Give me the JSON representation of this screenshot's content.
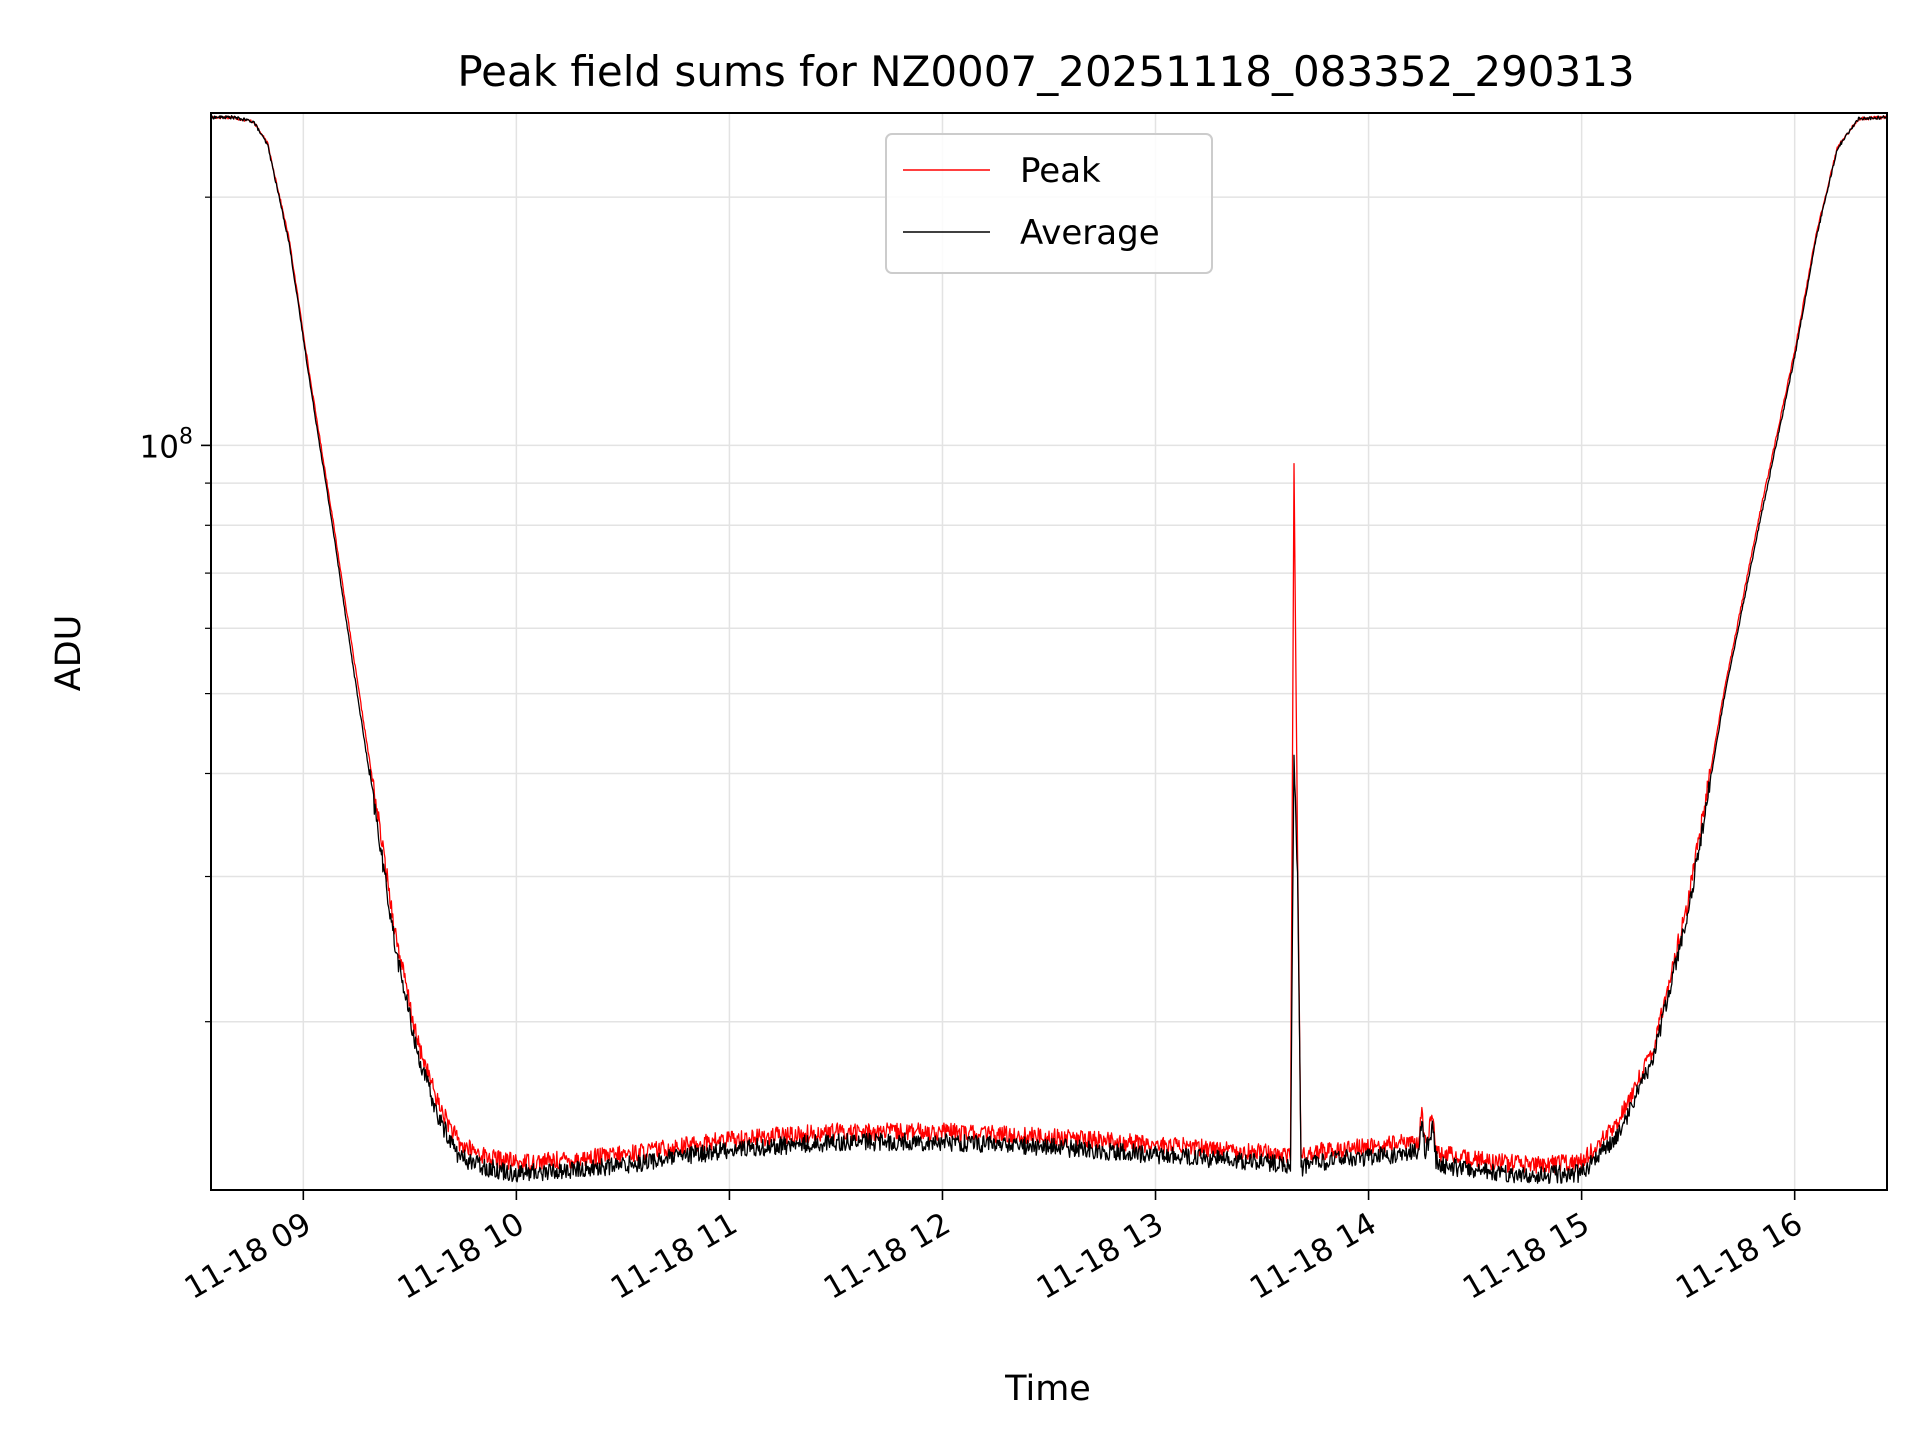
{
  "chart_data": {
    "type": "line",
    "title": "Peak field sums for NZ0007_20251118_083352_290313",
    "xlabel": "Time",
    "ylabel": "ADU",
    "y_scale": "log",
    "xlim": [
      "2025-11-18 08:34",
      "2025-11-18 16:26"
    ],
    "ylim": [
      12500000,
      253000000
    ],
    "x_ticks": [
      "11-18 09",
      "11-18 10",
      "11-18 11",
      "11-18 12",
      "11-18 13",
      "11-18 14",
      "11-18 15",
      "11-18 16"
    ],
    "x_tick_times": [
      "2025-11-18 09:00",
      "2025-11-18 10:00",
      "2025-11-18 11:00",
      "2025-11-18 12:00",
      "2025-11-18 13:00",
      "2025-11-18 14:00",
      "2025-11-18 15:00",
      "2025-11-18 16:00"
    ],
    "y_major_ticks": [
      {
        "value": 100000000,
        "label": "10",
        "exponent": "8"
      }
    ],
    "y_minor_ticks": [
      20000000,
      30000000,
      40000000,
      50000000,
      60000000,
      70000000,
      80000000,
      90000000,
      200000000
    ],
    "grid": true,
    "legend": {
      "placement": "upper-center",
      "entries": [
        "Peak",
        "Average"
      ]
    },
    "series": [
      {
        "name": "Peak",
        "color": "#ff0000",
        "x": [
          "2025-11-18 08:34",
          "2025-11-18 08:40",
          "2025-11-18 08:46",
          "2025-11-18 08:50",
          "2025-11-18 08:56",
          "2025-11-18 09:02",
          "2025-11-18 09:08",
          "2025-11-18 09:14",
          "2025-11-18 09:20",
          "2025-11-18 09:26",
          "2025-11-18 09:32",
          "2025-11-18 09:38",
          "2025-11-18 09:44",
          "2025-11-18 09:52",
          "2025-11-18 10:00",
          "2025-11-18 10:15",
          "2025-11-18 10:30",
          "2025-11-18 10:45",
          "2025-11-18 11:00",
          "2025-11-18 11:30",
          "2025-11-18 12:00",
          "2025-11-18 12:30",
          "2025-11-18 13:00",
          "2025-11-18 13:30",
          "2025-11-18 13:38",
          "2025-11-18 13:39",
          "2025-11-18 13:40",
          "2025-11-18 13:41",
          "2025-11-18 13:42",
          "2025-11-18 13:50",
          "2025-11-18 14:00",
          "2025-11-18 14:14",
          "2025-11-18 14:15",
          "2025-11-18 14:16",
          "2025-11-18 14:18",
          "2025-11-18 14:19",
          "2025-11-18 14:21",
          "2025-11-18 14:30",
          "2025-11-18 14:45",
          "2025-11-18 15:00",
          "2025-11-18 15:10",
          "2025-11-18 15:20",
          "2025-11-18 15:30",
          "2025-11-18 15:40",
          "2025-11-18 15:50",
          "2025-11-18 16:00",
          "2025-11-18 16:06",
          "2025-11-18 16:12",
          "2025-11-18 16:18",
          "2025-11-18 16:26"
        ],
        "y": [
          250000000,
          250000000,
          247000000,
          232000000,
          178000000,
          120000000,
          83000000,
          56000000,
          38000000,
          25500000,
          19000000,
          15900000,
          14200000,
          13700000,
          13500000,
          13600000,
          13800000,
          14100000,
          14400000,
          14700000,
          14700000,
          14500000,
          14200000,
          13900000,
          13800000,
          95000000,
          32000000,
          13600000,
          13800000,
          14000000,
          14100000,
          14300000,
          15400000,
          14300000,
          15300000,
          14000000,
          13800000,
          13600000,
          13400000,
          13500000,
          15000000,
          18500000,
          28000000,
          50000000,
          82000000,
          130000000,
          180000000,
          230000000,
          249000000,
          250000000
        ]
      },
      {
        "name": "Average",
        "color": "#000000",
        "x": [
          "2025-11-18 08:34",
          "2025-11-18 08:40",
          "2025-11-18 08:46",
          "2025-11-18 08:50",
          "2025-11-18 08:56",
          "2025-11-18 09:02",
          "2025-11-18 09:08",
          "2025-11-18 09:14",
          "2025-11-18 09:20",
          "2025-11-18 09:26",
          "2025-11-18 09:32",
          "2025-11-18 09:38",
          "2025-11-18 09:44",
          "2025-11-18 09:52",
          "2025-11-18 10:00",
          "2025-11-18 10:15",
          "2025-11-18 10:30",
          "2025-11-18 10:45",
          "2025-11-18 11:00",
          "2025-11-18 11:30",
          "2025-11-18 12:00",
          "2025-11-18 12:30",
          "2025-11-18 13:00",
          "2025-11-18 13:30",
          "2025-11-18 13:38",
          "2025-11-18 13:39",
          "2025-11-18 13:40",
          "2025-11-18 13:41",
          "2025-11-18 13:42",
          "2025-11-18 13:50",
          "2025-11-18 14:00",
          "2025-11-18 14:14",
          "2025-11-18 14:15",
          "2025-11-18 14:16",
          "2025-11-18 14:18",
          "2025-11-18 14:19",
          "2025-11-18 14:21",
          "2025-11-18 14:30",
          "2025-11-18 14:45",
          "2025-11-18 15:00",
          "2025-11-18 15:10",
          "2025-11-18 15:20",
          "2025-11-18 15:30",
          "2025-11-18 15:40",
          "2025-11-18 15:50",
          "2025-11-18 16:00",
          "2025-11-18 16:06",
          "2025-11-18 16:12",
          "2025-11-18 16:18",
          "2025-11-18 16:26"
        ],
        "y": [
          250000000,
          250000000,
          247000000,
          231000000,
          176000000,
          118000000,
          81000000,
          54000000,
          36500000,
          24500000,
          18400000,
          15300000,
          13700000,
          13300000,
          13100000,
          13200000,
          13400000,
          13700000,
          14000000,
          14300000,
          14300000,
          14100000,
          13800000,
          13500000,
          13400000,
          42000000,
          30000000,
          13200000,
          13400000,
          13600000,
          13700000,
          13900000,
          15000000,
          13900000,
          14900000,
          13600000,
          13400000,
          13200000,
          13000000,
          13100000,
          14500000,
          18000000,
          27000000,
          49000000,
          80000000,
          128000000,
          178000000,
          229000000,
          249000000,
          250000000
        ]
      }
    ]
  }
}
